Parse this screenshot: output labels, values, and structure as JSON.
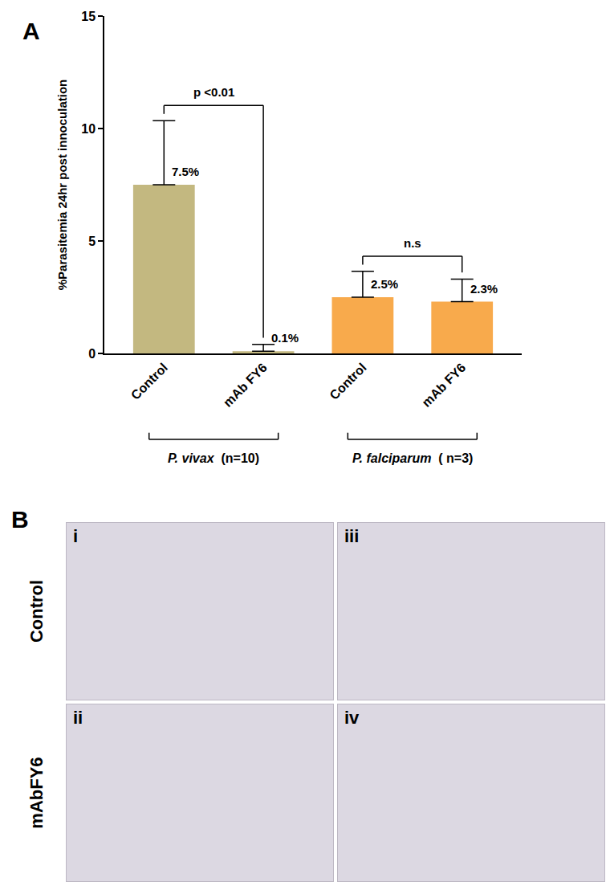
{
  "chart_data": {
    "type": "bar",
    "panel_label": "A",
    "y_label": "%Parasitemia 24hr post innoculation",
    "categories": [
      "Control",
      "mAb FY6",
      "Control",
      "mAb FY6"
    ],
    "values": [
      7.5,
      0.1,
      2.5,
      2.3
    ],
    "value_labels": [
      "7.5%",
      "0.1%",
      "2.5%",
      "2.3%"
    ],
    "error": [
      2.85,
      0.3,
      1.15,
      1.0
    ],
    "colors": [
      "#c3b880",
      "#c3b880",
      "#f8aa4c",
      "#f8aa4c"
    ],
    "ylim": [
      0,
      15
    ],
    "yticks": [
      0,
      5,
      10,
      15
    ],
    "grid": false,
    "data_labels": true,
    "comparisons": [
      {
        "text": "p <0.01",
        "bars": [
          0,
          1
        ]
      },
      {
        "text": "n.s",
        "bars": [
          2,
          3
        ]
      }
    ],
    "groups": [
      {
        "species": "P. vivax",
        "count": "(n=10)",
        "bars": [
          0,
          1
        ]
      },
      {
        "species": "P. falciparum",
        "count": "( n=3)",
        "bars": [
          2,
          3
        ]
      }
    ]
  },
  "panel_b": {
    "panel_label": "B",
    "rows": [
      "Control",
      "mAbFY6"
    ],
    "panels": [
      [
        "i",
        "iii"
      ],
      [
        "ii",
        "iv"
      ]
    ]
  }
}
